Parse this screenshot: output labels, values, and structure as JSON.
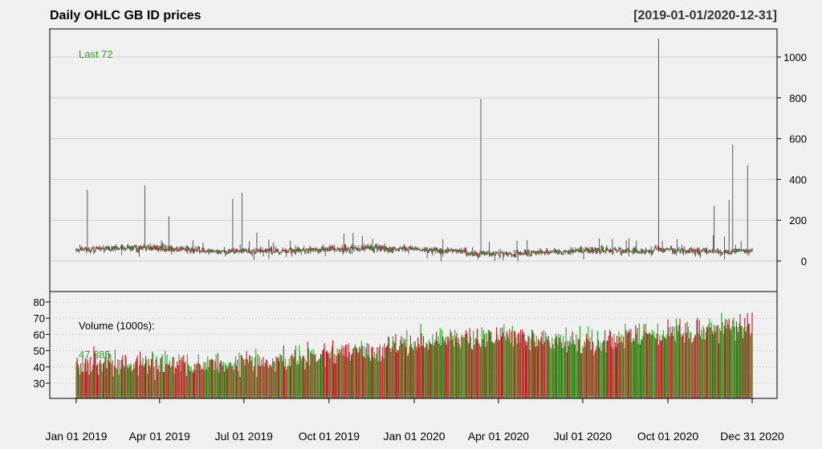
{
  "title": "Daily OHLC GB ID prices",
  "date_range": "[2019-01-01/2020-12-31]",
  "colors": {
    "up": "#22aa22",
    "down": "#cc1122",
    "candle": "#333333",
    "last": "#22aa22",
    "background": "#f0f0f0"
  },
  "chart_data": [
    {
      "type": "ohlc",
      "title": "Daily OHLC GB ID prices",
      "xlim": [
        "2019-01-01",
        "2020-12-31"
      ],
      "ylim": [
        -110,
        1100
      ],
      "y_ticks": [
        0,
        200,
        400,
        600,
        800,
        1000
      ],
      "x_ticks": [
        "Jan 01 2019",
        "Apr 01 2019",
        "Jul 01 2019",
        "Oct 01 2019",
        "Jan 01 2020",
        "Apr 01 2020",
        "Jul 01 2020",
        "Oct 01 2020",
        "Dec 31 2020"
      ],
      "last_label": "Last 72",
      "typical_range": [
        20,
        90
      ],
      "spikes": [
        {
          "date": "2019-01-13",
          "high": 350
        },
        {
          "date": "2019-03-16",
          "high": 370
        },
        {
          "date": "2019-04-11",
          "high": 220
        },
        {
          "date": "2019-06-19",
          "high": 305
        },
        {
          "date": "2019-06-29",
          "high": 335
        },
        {
          "date": "2020-03-13",
          "high": 795
        },
        {
          "date": "2020-09-21",
          "high": 1090
        },
        {
          "date": "2020-11-20",
          "high": 270
        },
        {
          "date": "2020-12-06",
          "high": 300
        },
        {
          "date": "2020-12-10",
          "high": 570
        },
        {
          "date": "2020-12-26",
          "high": 470
        }
      ],
      "grid": true
    },
    {
      "type": "bar",
      "title": "Volume (1000s):",
      "ylabel": "Volume (1000s)",
      "ylim": [
        20,
        83
      ],
      "y_ticks": [
        30,
        40,
        50,
        60,
        70,
        80
      ],
      "last_value": "47.385",
      "trend": {
        "2019-01-01": 42,
        "2019-07-01": 42,
        "2019-10-01": 48,
        "2020-01-01": 55,
        "2020-04-01": 60,
        "2020-07-01": 55,
        "2020-10-01": 62,
        "2020-12-31": 65
      },
      "grid": true
    }
  ]
}
